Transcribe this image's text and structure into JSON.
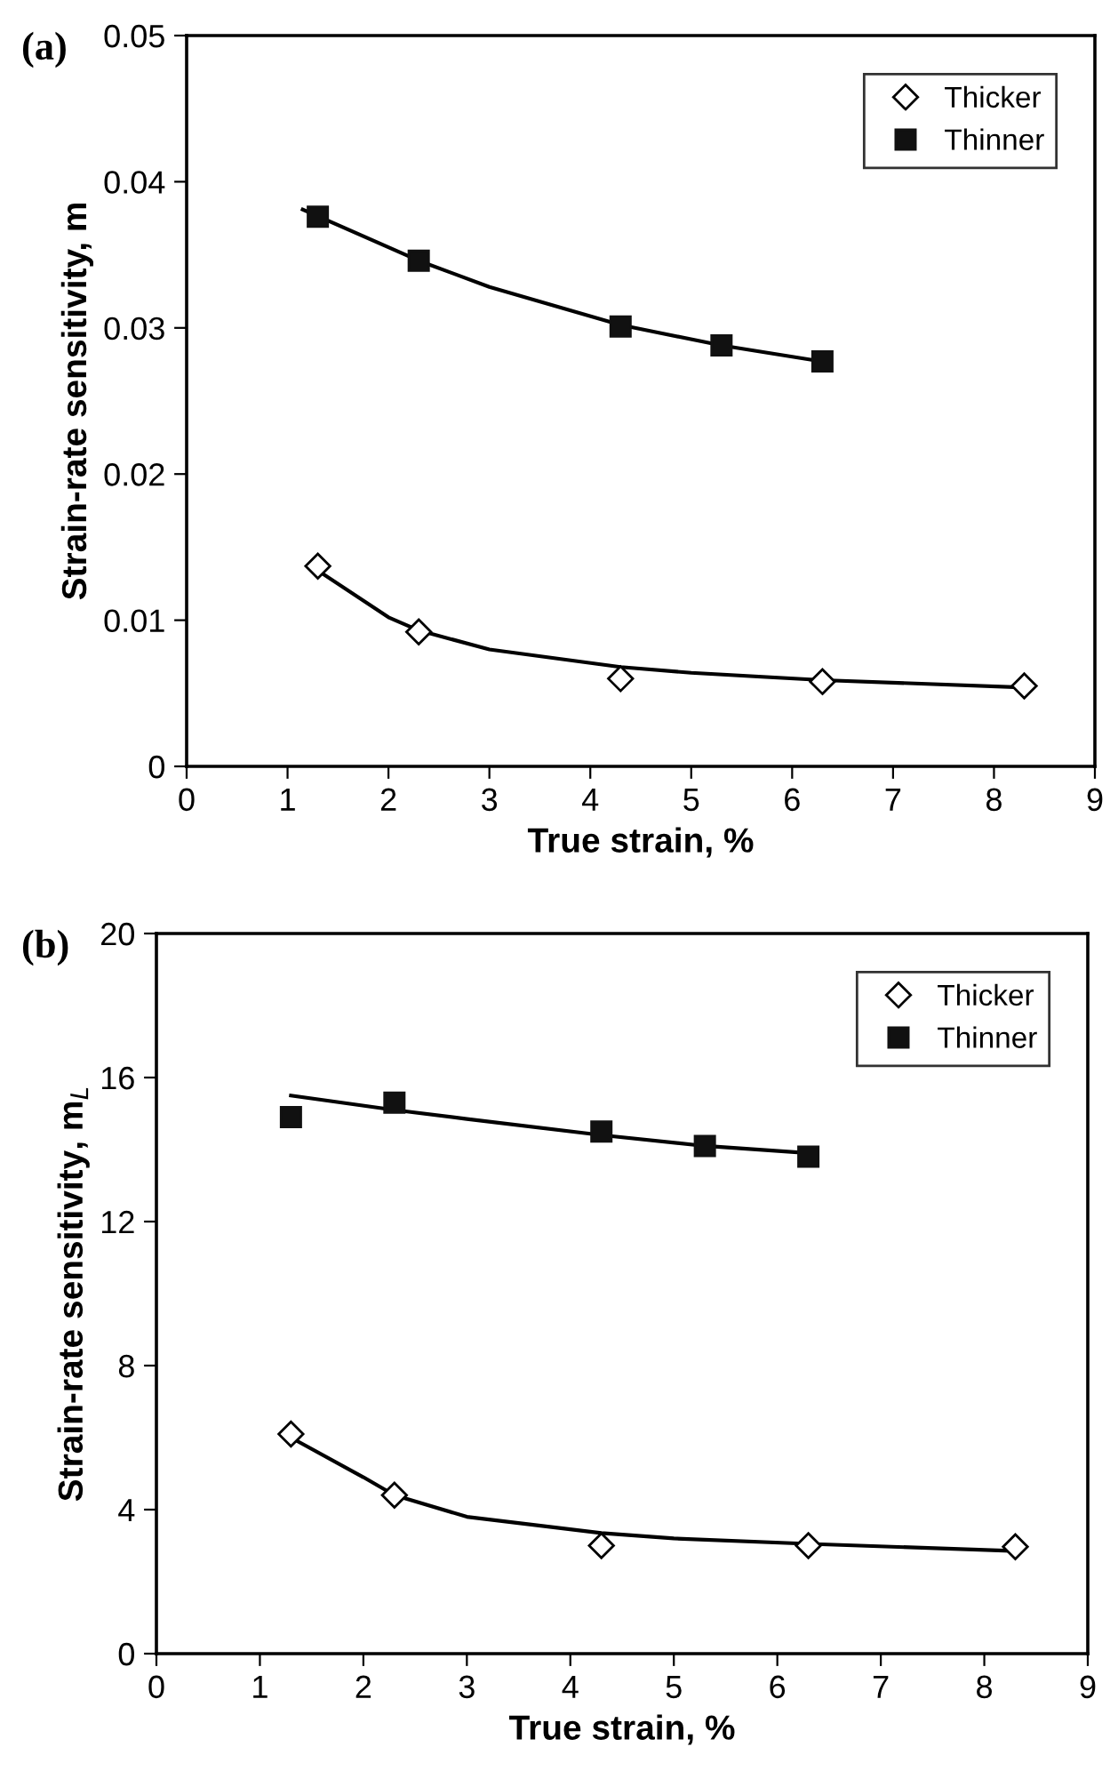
{
  "chart_data": [
    {
      "type": "scatter",
      "xlabel": "True strain, %",
      "ylabel": "Strain-rate sensitivity, m",
      "annotations": [
        "(a)"
      ],
      "xlim": [
        0,
        9
      ],
      "xticks": [
        0,
        1,
        2,
        3,
        4,
        5,
        6,
        7,
        8,
        9
      ],
      "ylim": [
        0,
        0.05
      ],
      "yticks": [
        0,
        0.01,
        0.02,
        0.03,
        0.04,
        0.05
      ],
      "grid": false,
      "legend": "top right",
      "series": [
        {
          "name": "Thicker",
          "color": "#000000",
          "marker": "diamond",
          "x": [
            1.3,
            2.3,
            4.3,
            6.3,
            8.3
          ],
          "values": [
            0.0137,
            0.0092,
            0.006,
            0.0058,
            0.0055
          ]
        },
        {
          "name": "Thinner",
          "color": "#111111",
          "marker": "square",
          "x": [
            1.3,
            2.3,
            4.3,
            5.3,
            6.3
          ],
          "values": [
            0.0376,
            0.0346,
            0.0301,
            0.0288,
            0.0277
          ]
        },
        {
          "type": "line",
          "color": "#000000",
          "marker": "none",
          "x": [
            1.3,
            2.0,
            2.3,
            3.0,
            4.3,
            5.0,
            6.3,
            8.3
          ],
          "values": [
            0.0134,
            0.0102,
            0.0093,
            0.008,
            0.0068,
            0.0064,
            0.0059,
            0.0054
          ]
        },
        {
          "type": "line",
          "color": "#000000",
          "marker": "none",
          "x": [
            1.15,
            2.3,
            3.0,
            4.3,
            5.3,
            6.3
          ],
          "values": [
            0.0381,
            0.0346,
            0.0328,
            0.0302,
            0.0288,
            0.0277
          ]
        }
      ]
    },
    {
      "type": "scatter",
      "xlabel": "True strain, %",
      "ylabel": "Strain-rate sensitivity, m$_{L}$",
      "annotations": [
        "(b)"
      ],
      "xlim": [
        0,
        9
      ],
      "xticks": [
        0,
        1,
        2,
        3,
        4,
        5,
        6,
        7,
        8,
        9
      ],
      "ylim": [
        0,
        20
      ],
      "yticks": [
        0,
        4,
        8,
        12,
        16,
        20
      ],
      "grid": false,
      "legend": "top right",
      "series": [
        {
          "name": "Thicker",
          "color": "#000000",
          "marker": "diamond",
          "x": [
            1.3,
            2.3,
            4.3,
            6.3,
            8.3
          ],
          "values": [
            6.1,
            4.4,
            3.0,
            3.0,
            2.97
          ]
        },
        {
          "name": "Thinner",
          "color": "#111111",
          "marker": "square",
          "x": [
            1.3,
            2.3,
            4.3,
            5.3,
            6.3
          ],
          "values": [
            14.9,
            15.3,
            14.5,
            14.1,
            13.8
          ]
        },
        {
          "type": "line",
          "color": "#000000",
          "marker": "none",
          "x": [
            1.3,
            2.0,
            2.3,
            3.0,
            4.3,
            5.0,
            6.3,
            8.3
          ],
          "values": [
            6.0,
            4.9,
            4.4,
            3.8,
            3.35,
            3.2,
            3.05,
            2.85
          ]
        },
        {
          "type": "line",
          "color": "#000000",
          "marker": "none",
          "x": [
            1.3,
            2.3,
            3.0,
            4.3,
            5.3,
            6.3
          ],
          "values": [
            15.5,
            15.1,
            14.85,
            14.4,
            14.1,
            13.9
          ]
        }
      ]
    }
  ]
}
